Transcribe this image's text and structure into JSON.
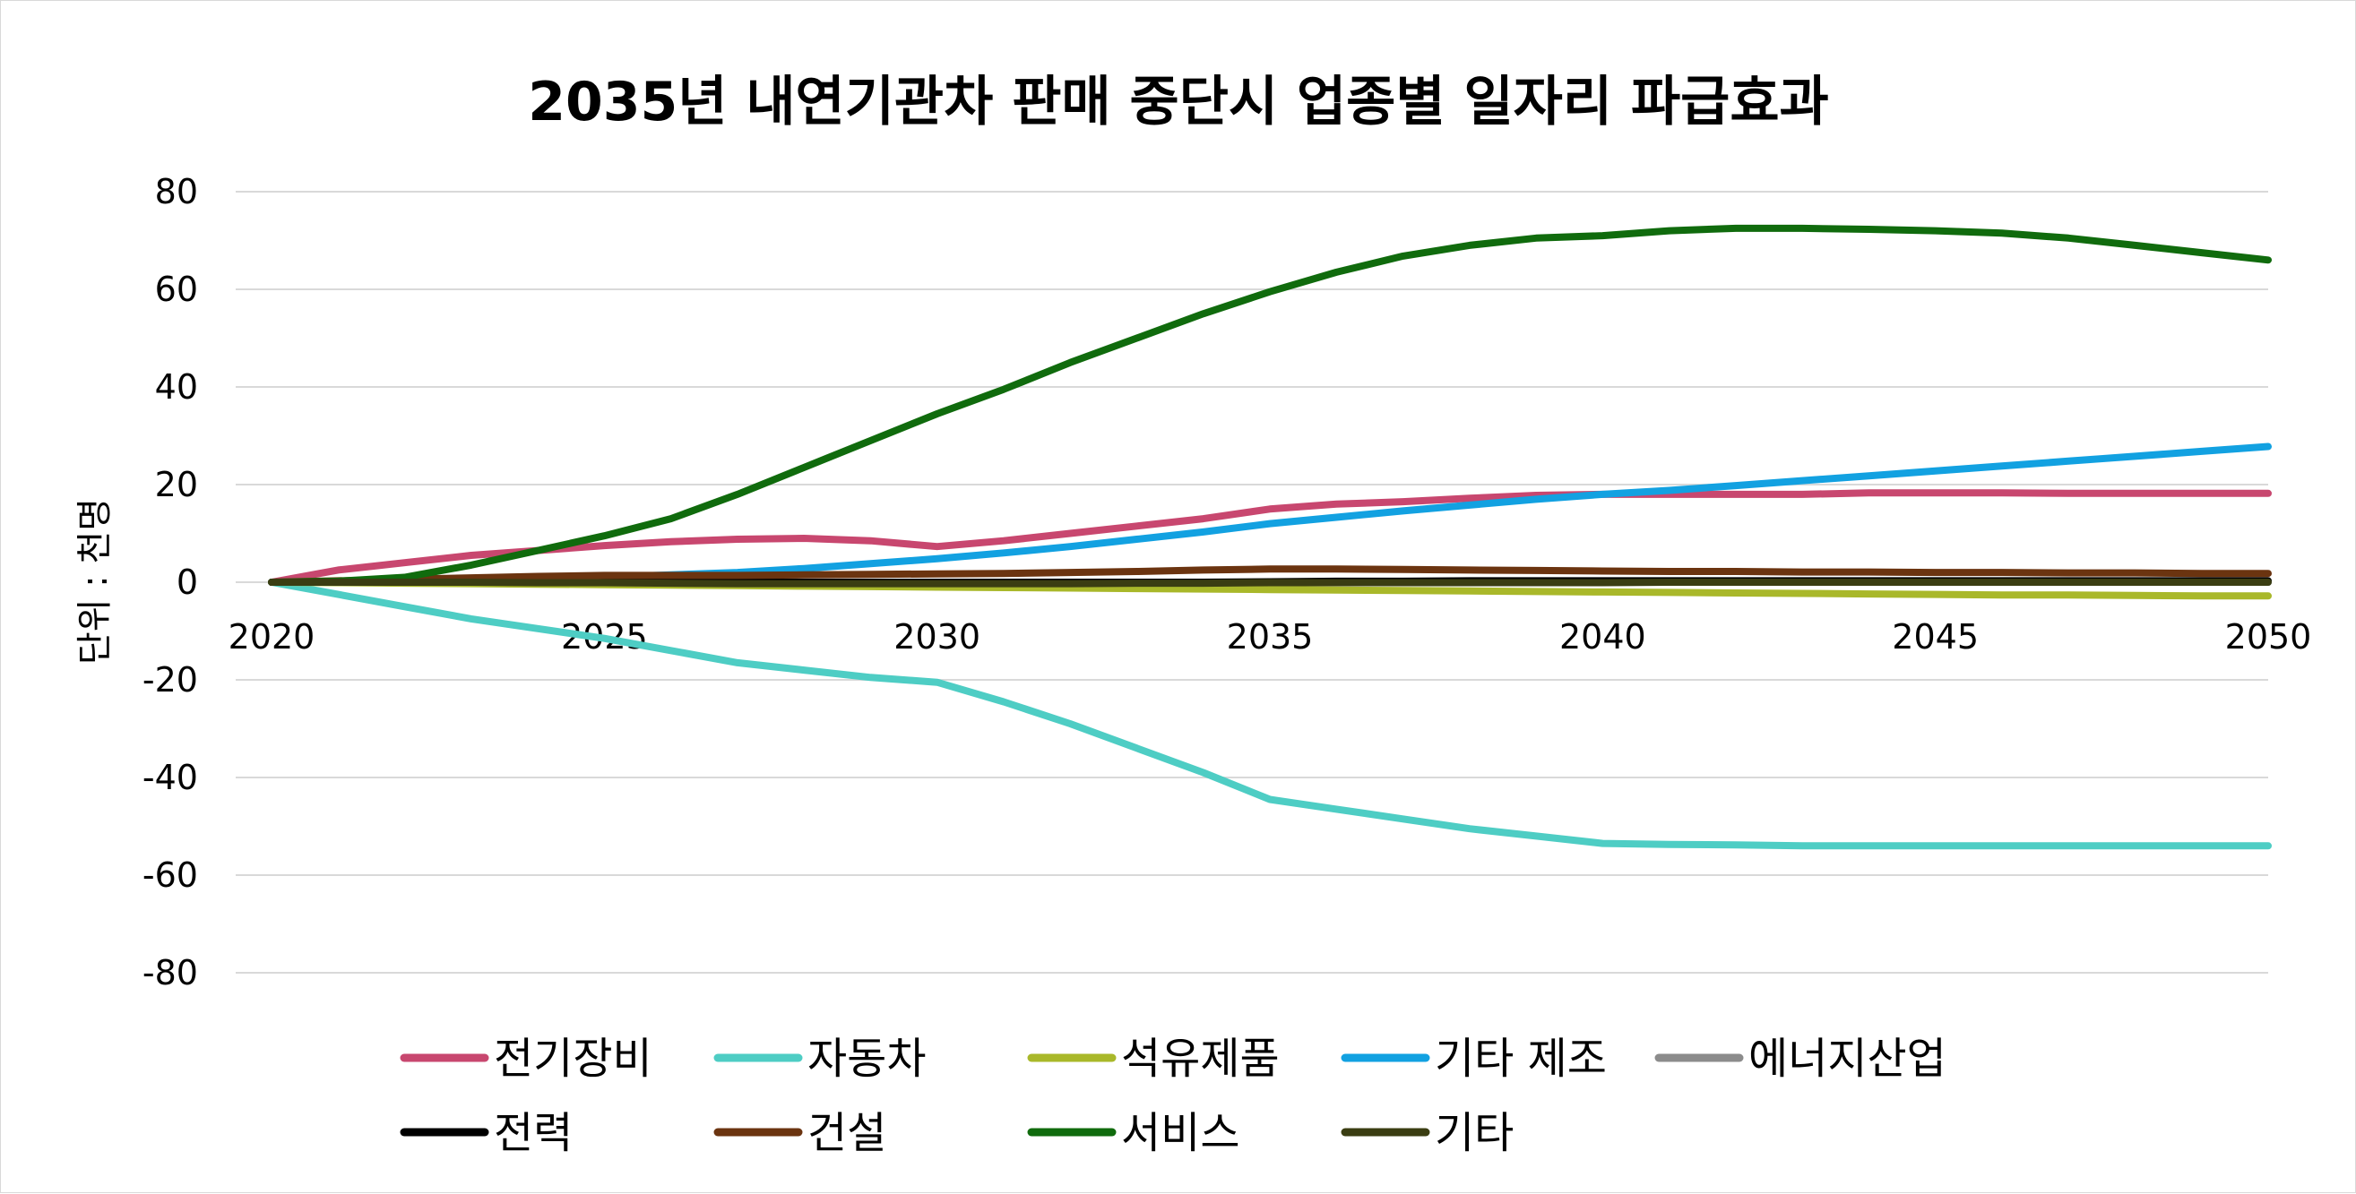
{
  "chart_data": {
    "type": "line",
    "title": "2035년 내연기관차 판매 중단시 업종별 일자리 파급효과",
    "xlabel": "",
    "ylabel": "단위 : 천명",
    "x": [
      2020,
      2021,
      2022,
      2023,
      2024,
      2025,
      2026,
      2027,
      2028,
      2029,
      2030,
      2031,
      2032,
      2033,
      2034,
      2035,
      2036,
      2037,
      2038,
      2039,
      2040,
      2041,
      2042,
      2043,
      2044,
      2045,
      2046,
      2047,
      2048,
      2049,
      2050
    ],
    "x_ticks": [
      2020,
      2025,
      2030,
      2035,
      2040,
      2045,
      2050
    ],
    "x_tick_labels": [
      "2020",
      "2025",
      "2030",
      "2035",
      "2040",
      "2045",
      "2050"
    ],
    "xlim": [
      2020,
      2050
    ],
    "ylim": [
      -80,
      80
    ],
    "y_ticks": [
      80,
      60,
      40,
      20,
      0,
      -20,
      -40,
      -60,
      -80
    ],
    "y_tick_labels": [
      "80",
      "60",
      "40",
      "20",
      "0",
      "-20",
      "-40",
      "-60",
      "-80"
    ],
    "grid": true,
    "legend_position": "bottom",
    "series": [
      {
        "name": "전기장비",
        "color": "#c8476f",
        "values": [
          0,
          2.5,
          4,
          5.5,
          6.5,
          7.5,
          8.3,
          8.8,
          9,
          8.5,
          7.3,
          8.5,
          10,
          11.5,
          13,
          15,
          16,
          16.5,
          17.2,
          17.8,
          18,
          18,
          18,
          18,
          18.3,
          18.3,
          18.3,
          18.2,
          18.2,
          18.2,
          18.2
        ]
      },
      {
        "name": "자동차",
        "color": "#4ecdc4",
        "values": [
          0,
          -2.5,
          -5,
          -7.5,
          -9.5,
          -11.5,
          -14,
          -16.5,
          -18,
          -19.5,
          -20.5,
          -24.5,
          -29,
          -34,
          -39,
          -44.5,
          -46.5,
          -48.5,
          -50.5,
          -52,
          -53.5,
          -53.7,
          -53.8,
          -54,
          -54,
          -54,
          -54,
          -54,
          -54,
          -54,
          -54
        ]
      },
      {
        "name": "석유제품",
        "color": "#a9b82a",
        "values": [
          0,
          -0.1,
          -0.2,
          -0.3,
          -0.4,
          -0.5,
          -0.6,
          -0.7,
          -0.8,
          -0.9,
          -1,
          -1.1,
          -1.2,
          -1.3,
          -1.4,
          -1.5,
          -1.6,
          -1.7,
          -1.8,
          -1.9,
          -2,
          -2.1,
          -2.2,
          -2.3,
          -2.4,
          -2.5,
          -2.6,
          -2.6,
          -2.7,
          -2.8,
          -2.8
        ]
      },
      {
        "name": "기타 제조",
        "color": "#12a1e1",
        "values": [
          0,
          0,
          0.2,
          0.5,
          0.8,
          1,
          1.5,
          2,
          2.8,
          3.8,
          4.8,
          6,
          7.3,
          8.8,
          10.3,
          12,
          13.3,
          14.6,
          15.8,
          17,
          18,
          18.8,
          19.8,
          20.8,
          21.8,
          22.8,
          23.8,
          24.8,
          25.8,
          26.8,
          27.8
        ]
      },
      {
        "name": "에너지산업",
        "color": "#8c8c8c",
        "values": [
          0,
          0,
          0,
          0,
          0,
          0,
          0,
          0,
          0,
          0,
          0,
          0,
          0,
          0,
          0,
          0,
          0,
          0,
          0,
          0,
          0,
          0,
          0,
          0,
          0,
          0,
          0,
          0,
          0,
          0,
          0
        ]
      },
      {
        "name": "전력",
        "color": "#000000",
        "values": [
          0,
          0,
          0,
          0,
          0,
          0,
          0,
          0,
          0,
          0,
          0,
          0,
          0,
          0,
          0,
          0.1,
          0.2,
          0.2,
          0.3,
          0.3,
          0.3,
          0.3,
          0.3,
          0.3,
          0.3,
          0.3,
          0.3,
          0.3,
          0.3,
          0.3,
          0.3
        ]
      },
      {
        "name": "건설",
        "color": "#6b3410",
        "values": [
          0,
          0.3,
          0.6,
          0.9,
          1.2,
          1.4,
          1.4,
          1.4,
          1.5,
          1.6,
          1.7,
          1.8,
          2,
          2.2,
          2.5,
          2.7,
          2.7,
          2.6,
          2.5,
          2.4,
          2.3,
          2.2,
          2.2,
          2.1,
          2.1,
          2,
          2,
          1.9,
          1.9,
          1.8,
          1.8
        ]
      },
      {
        "name": "서비스",
        "color": "#106b0d",
        "values": [
          0,
          0.2,
          1,
          3.5,
          6.5,
          9.5,
          13,
          18,
          23.5,
          29,
          34.5,
          39.5,
          45,
          50,
          55,
          59.5,
          63.5,
          66.8,
          69,
          70.5,
          71,
          72,
          72.5,
          72.5,
          72.3,
          72,
          71.5,
          70.5,
          69,
          67.5,
          66
        ]
      },
      {
        "name": "기타",
        "color": "#3a3d12",
        "values": [
          0,
          0,
          0,
          0,
          -0.1,
          -0.1,
          -0.2,
          -0.3,
          -0.3,
          -0.3,
          -0.3,
          -0.3,
          -0.3,
          -0.2,
          -0.2,
          -0.1,
          -0.1,
          -0.1,
          -0.1,
          -0.1,
          -0.1,
          0,
          0,
          0,
          0,
          0,
          0,
          0,
          0,
          0,
          0
        ]
      }
    ]
  }
}
